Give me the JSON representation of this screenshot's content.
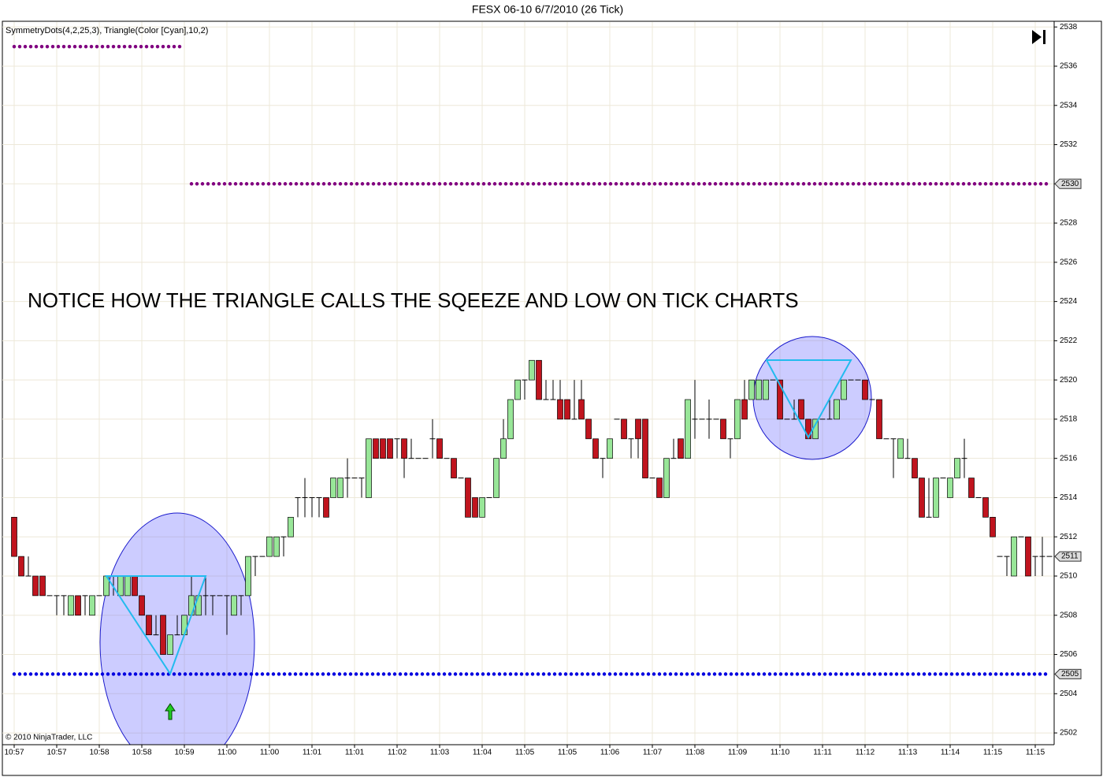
{
  "chart_data": {
    "type": "candlestick",
    "title": "FESX 06-10  6/7/2010 (26 Tick)",
    "indicator_label": "SymmetryDots(4,2,25,3), Triangle(Color [Cyan],10,2)",
    "annotation": "NOTICE HOW THE TRIANGLE CALLS THE SQEEZE AND LOW ON TICK CHARTS",
    "copyright": "© 2010 NinjaTrader, LLC",
    "categories": [
      "10:57",
      null,
      null,
      null,
      null,
      null,
      "10:57",
      null,
      null,
      null,
      null,
      null,
      "10:58",
      null,
      null,
      null,
      null,
      null,
      "10:58",
      null,
      null,
      null,
      null,
      null,
      "10:59",
      null,
      null,
      null,
      null,
      null,
      "11:00",
      null,
      null,
      null,
      null,
      null,
      "11:00",
      null,
      null,
      null,
      null,
      null,
      "11:01",
      null,
      null,
      null,
      null,
      null,
      "11:01",
      null,
      null,
      null,
      null,
      null,
      "11:02",
      null,
      null,
      null,
      null,
      null,
      "11:03",
      null,
      null,
      null,
      null,
      null,
      "11:04",
      null,
      null,
      null,
      null,
      null,
      "11:05",
      null,
      null,
      null,
      null,
      null,
      "11:05",
      null,
      null,
      null,
      null,
      null,
      "11:06",
      null,
      null,
      null,
      null,
      null,
      "11:07",
      null,
      null,
      null,
      null,
      null,
      "11:08",
      null,
      null,
      null,
      null,
      null,
      "11:09",
      null,
      null,
      null,
      null,
      null,
      "11:10",
      null,
      null,
      null,
      null,
      null,
      "11:11",
      null,
      null,
      null,
      null,
      null,
      "11:12",
      null,
      null,
      null,
      null,
      null,
      "11:13",
      null,
      null,
      null,
      null,
      null,
      "11:14",
      null,
      null,
      null,
      null,
      null,
      "11:15",
      null,
      null,
      null,
      null,
      null,
      "11:15",
      null,
      null
    ],
    "open": [
      2513,
      2511,
      2510,
      2510,
      2510,
      2509,
      2509,
      2509,
      2508,
      2509,
      2509,
      2508,
      2509,
      2509,
      2510,
      2509,
      2509,
      2510,
      2509,
      2508,
      2507,
      2508,
      2506,
      2507,
      2507,
      2508,
      2508,
      2509,
      2509,
      2509,
      2509,
      2508,
      2509,
      2509,
      2511,
      2511,
      2511,
      2511,
      2512,
      2512,
      2514,
      2514,
      2514,
      2514,
      2514,
      2514,
      2514,
      2515,
      2515,
      2515,
      2514,
      2517,
      2517,
      2517,
      2517,
      2517,
      2516,
      2516,
      2516,
      2517,
      2517,
      2516,
      2516,
      2515,
      2515,
      2514,
      2513,
      2514,
      2514,
      2516,
      2517,
      2519,
      2520,
      2520,
      2521,
      2519,
      2519,
      2519,
      2519,
      2518,
      2519,
      2518,
      2517,
      2516,
      2516,
      2518,
      2518,
      2517,
      2518,
      2518,
      2515,
      2515,
      2514,
      2516,
      2517,
      2516,
      2518,
      2518,
      2518,
      2518,
      2518,
      2517,
      2517,
      2519,
      2519,
      2519,
      2519,
      2520,
      2520,
      2518,
      2518,
      2519,
      2518,
      2517,
      2518,
      2518,
      2518,
      2519,
      2520,
      2520,
      2520,
      2519,
      2519,
      2517,
      2517,
      2516,
      2516,
      2516,
      2515,
      2513,
      2513,
      2515,
      2514,
      2515,
      2516,
      2515,
      2514,
      2514,
      2513,
      2511,
      2511,
      2510,
      2512,
      2512,
      2511,
      2511,
      2511
    ],
    "high": [
      2513,
      2511,
      2511,
      2510,
      2510,
      2509,
      2509,
      2509,
      2509,
      2509,
      2509,
      2509,
      2509,
      2510,
      2510,
      2510,
      2510,
      2510,
      2509,
      2508,
      2508,
      2508,
      2507,
      2508,
      2508,
      2510,
      2509,
      2510,
      2509,
      2509,
      2509,
      2509,
      2509,
      2511,
      2511,
      2511,
      2512,
      2512,
      2512,
      2513,
      2514,
      2515,
      2514,
      2514,
      2514,
      2515,
      2515,
      2516,
      2515,
      2515,
      2517,
      2517,
      2517,
      2517,
      2517,
      2517,
      2517,
      2516,
      2516,
      2518,
      2517,
      2516,
      2516,
      2515,
      2515,
      2514,
      2514,
      2514,
      2516,
      2518,
      2519,
      2520,
      2520,
      2521,
      2521,
      2520,
      2520,
      2520,
      2519,
      2520,
      2520,
      2518,
      2517,
      2516,
      2517,
      2518,
      2518,
      2517,
      2518,
      2518,
      2515,
      2515,
      2516,
      2517,
      2517,
      2519,
      2520,
      2518,
      2519,
      2518,
      2518,
      2517,
      2519,
      2520,
      2520,
      2520,
      2520,
      2520,
      2520,
      2518,
      2519,
      2519,
      2518,
      2518,
      2518,
      2519,
      2519,
      2520,
      2520,
      2520,
      2520,
      2519,
      2519,
      2517,
      2517,
      2517,
      2517,
      2516,
      2515,
      2515,
      2515,
      2515,
      2515,
      2516,
      2517,
      2515,
      2514,
      2514,
      2513,
      2511,
      2511,
      2512,
      2512,
      2512,
      2511,
      2512,
      2511
    ],
    "low": [
      2511,
      2510,
      2510,
      2509,
      2509,
      2509,
      2508,
      2508,
      2508,
      2508,
      2508,
      2508,
      2509,
      2509,
      2509,
      2509,
      2509,
      2509,
      2508,
      2507,
      2507,
      2506,
      2506,
      2507,
      2507,
      2508,
      2508,
      2508,
      2508,
      2509,
      2507,
      2508,
      2508,
      2509,
      2510,
      2511,
      2511,
      2511,
      2511,
      2512,
      2513,
      2513,
      2513,
      2513,
      2513,
      2514,
      2514,
      2514,
      2515,
      2514,
      2514,
      2516,
      2516,
      2516,
      2516,
      2515,
      2516,
      2516,
      2516,
      2516,
      2516,
      2516,
      2515,
      2515,
      2513,
      2513,
      2513,
      2514,
      2514,
      2516,
      2517,
      2519,
      2519,
      2520,
      2519,
      2519,
      2519,
      2518,
      2518,
      2518,
      2518,
      2517,
      2516,
      2515,
      2516,
      2518,
      2517,
      2516,
      2516,
      2515,
      2515,
      2514,
      2514,
      2516,
      2516,
      2516,
      2517,
      2518,
      2517,
      2518,
      2517,
      2516,
      2517,
      2518,
      2519,
      2519,
      2519,
      2520,
      2518,
      2518,
      2518,
      2518,
      2517,
      2517,
      2518,
      2518,
      2518,
      2519,
      2520,
      2520,
      2519,
      2519,
      2517,
      2517,
      2515,
      2516,
      2516,
      2515,
      2513,
      2513,
      2513,
      2515,
      2514,
      2515,
      2515,
      2514,
      2514,
      2513,
      2512,
      2511,
      2510,
      2510,
      2512,
      2510,
      2510,
      2510,
      2511
    ],
    "close": [
      2511,
      2510,
      2510,
      2509,
      2509,
      2509,
      2509,
      2509,
      2509,
      2508,
      2509,
      2509,
      2509,
      2510,
      2510,
      2510,
      2510,
      2509,
      2508,
      2507,
      2507,
      2506,
      2507,
      2507,
      2508,
      2509,
      2509,
      2509,
      2509,
      2509,
      2509,
      2509,
      2509,
      2511,
      2511,
      2511,
      2512,
      2512,
      2512,
      2513,
      2514,
      2514,
      2514,
      2514,
      2513,
      2515,
      2515,
      2515,
      2515,
      2515,
      2517,
      2516,
      2516,
      2516,
      2517,
      2516,
      2516,
      2516,
      2516,
      2517,
      2516,
      2516,
      2515,
      2515,
      2513,
      2513,
      2514,
      2514,
      2516,
      2517,
      2519,
      2520,
      2520,
      2521,
      2519,
      2519,
      2519,
      2518,
      2518,
      2518,
      2518,
      2517,
      2516,
      2516,
      2517,
      2518,
      2517,
      2517,
      2517,
      2515,
      2515,
      2514,
      2516,
      2516,
      2516,
      2519,
      2518,
      2518,
      2518,
      2518,
      2517,
      2517,
      2519,
      2518,
      2520,
      2520,
      2520,
      2520,
      2518,
      2518,
      2518,
      2518,
      2517,
      2518,
      2518,
      2518,
      2519,
      2520,
      2520,
      2520,
      2519,
      2519,
      2517,
      2517,
      2517,
      2517,
      2516,
      2515,
      2513,
      2513,
      2515,
      2515,
      2515,
      2516,
      2516,
      2514,
      2514,
      2513,
      2512,
      2511,
      2511,
      2512,
      2512,
      2510,
      2511,
      2511,
      2511
    ],
    "up_color": "#98e698",
    "down_color": "#c0141e",
    "dots": [
      {
        "color": "#800080",
        "x": [
          0,
          24
        ],
        "values": [
          2537,
          2537
        ]
      },
      {
        "color": "#800080",
        "x": [
          25,
          146
        ],
        "values": [
          2530,
          2530
        ]
      },
      {
        "color": "#0000e0",
        "x": [
          0,
          146
        ],
        "values": [
          2505,
          2505
        ]
      }
    ],
    "price_markers": [
      2530,
      2511,
      2505
    ],
    "ylim": [
      2501.4,
      2538.25
    ],
    "yticks": [
      2502,
      2504,
      2506,
      2508,
      2510,
      2512,
      2514,
      2516,
      2518,
      2520,
      2522,
      2524,
      2526,
      2528,
      2530,
      2532,
      2534,
      2536,
      2538
    ],
    "grid": true
  }
}
